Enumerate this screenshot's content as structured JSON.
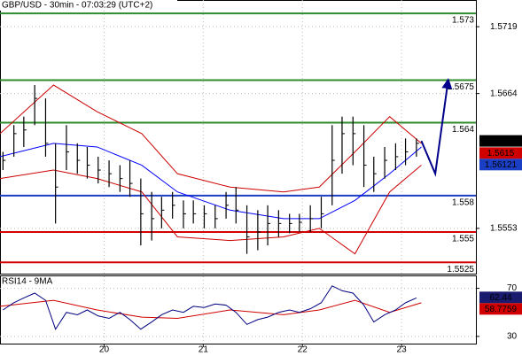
{
  "chart_data": [
    {
      "type": "ohlc",
      "title": "GBP/USD - 30min - 07:03:29 (UTC+2)",
      "x": [
        18.98,
        19.09,
        19.19,
        19.3,
        19.41,
        19.51,
        19.62,
        19.73,
        19.83,
        19.94,
        20.05,
        20.16,
        20.26,
        20.37,
        20.48,
        20.58,
        20.69,
        20.8,
        20.9,
        21.01,
        21.12,
        21.23,
        21.33,
        21.44,
        21.55,
        21.65,
        21.76,
        21.87,
        21.97,
        22.08,
        22.19,
        22.3,
        22.4,
        22.51,
        22.62,
        22.72,
        22.83,
        22.94,
        23.04,
        23.15
      ],
      "high": [
        1.5616,
        1.5638,
        1.5645,
        1.5671,
        1.566,
        1.5623,
        1.5638,
        1.5623,
        1.562,
        1.5612,
        1.5609,
        1.5605,
        1.5609,
        1.5594,
        1.5583,
        1.5579,
        1.5583,
        1.5576,
        1.5576,
        1.5572,
        1.5572,
        1.5583,
        1.5587,
        1.5572,
        1.5568,
        1.5572,
        1.5568,
        1.5565,
        1.5565,
        1.5572,
        1.5579,
        1.5638,
        1.5645,
        1.5645,
        1.5638,
        1.5612,
        1.562,
        1.5623,
        1.5627,
        1.5627
      ],
      "low": [
        1.5601,
        1.5612,
        1.562,
        1.5638,
        1.5612,
        1.5557,
        1.5601,
        1.5598,
        1.5594,
        1.559,
        1.5587,
        1.5583,
        1.5579,
        1.5539,
        1.5543,
        1.5553,
        1.5561,
        1.5553,
        1.5557,
        1.5553,
        1.5553,
        1.5561,
        1.5557,
        1.5532,
        1.5535,
        1.5539,
        1.5546,
        1.5549,
        1.555,
        1.555,
        1.5553,
        1.5572,
        1.5598,
        1.5605,
        1.5587,
        1.5583,
        1.5594,
        1.5601,
        1.5605,
        1.5612
      ],
      "close": [
        1.5609,
        1.5631,
        1.5634,
        1.566,
        1.5623,
        1.5587,
        1.5616,
        1.5609,
        1.5605,
        1.5601,
        1.5598,
        1.5594,
        1.559,
        1.5565,
        1.5561,
        1.5568,
        1.5572,
        1.5565,
        1.5565,
        1.5565,
        1.5561,
        1.5572,
        1.5568,
        1.5546,
        1.555,
        1.5557,
        1.5557,
        1.5557,
        1.5558,
        1.5561,
        1.5565,
        1.5609,
        1.5631,
        1.5631,
        1.5605,
        1.5598,
        1.5609,
        1.5612,
        1.5616,
        1.5623
      ],
      "bar_color": "#000000",
      "overlays": [
        {
          "x": [
            18.95,
            19.49,
            19.93,
            20.38,
            20.74,
            21.27,
            21.81,
            22.17,
            22.53,
            22.88,
            23.2
          ],
          "values": [
            1.5612,
            1.5623,
            1.562,
            1.5605,
            1.5583,
            1.5568,
            1.5561,
            1.5561,
            1.5576,
            1.5598,
            1.562
          ],
          "color": "#0000ff"
        },
        {
          "x": [
            18.95,
            19.49,
            19.93,
            20.38,
            20.74,
            21.27,
            21.81,
            22.17,
            22.53,
            22.88,
            23.2
          ],
          "values": [
            1.5631,
            1.5671,
            1.5649,
            1.5631,
            1.5598,
            1.5587,
            1.5583,
            1.5587,
            1.5616,
            1.5645,
            1.5623
          ],
          "color": "#cc0000"
        },
        {
          "x": [
            18.95,
            19.49,
            19.93,
            20.38,
            20.74,
            21.27,
            21.81,
            22.17,
            22.53,
            22.88,
            23.2
          ],
          "values": [
            1.5594,
            1.5601,
            1.5594,
            1.5583,
            1.5546,
            1.5543,
            1.5546,
            1.5553,
            1.5532,
            1.5583,
            1.5605
          ],
          "color": "#cc0000"
        }
      ],
      "projection": {
        "x": [
          23.2,
          23.34,
          23.47
        ],
        "values": [
          1.5625,
          1.5598,
          1.5675
        ],
        "color": "#00008b"
      },
      "levels": [
        {
          "value": 1.573,
          "color": "#2e8b2e"
        },
        {
          "value": 1.5675,
          "color": "#2e8b2e"
        },
        {
          "value": 1.564,
          "color": "#2e8b2e"
        },
        {
          "value": 1.558,
          "color": "#1a3fc4"
        },
        {
          "value": 1.555,
          "color": "#d00000"
        },
        {
          "value": 1.5525,
          "color": "#d00000"
        }
      ],
      "markers": [
        {
          "value": 1.5625,
          "color": "#000000"
        },
        {
          "value": 1.5615,
          "color": "#d00000"
        },
        {
          "value": 1.56121,
          "color": "#1a3fc4"
        }
      ],
      "xlim": [
        18.95,
        23.75
      ],
      "ylim": [
        1.5515,
        1.5741
      ],
      "yticks": [
        1.5719,
        1.5664,
        1.5553
      ],
      "grid": true
    },
    {
      "type": "line",
      "title": "RSI14 - 9MA",
      "x": [
        18.98,
        19.09,
        19.19,
        19.3,
        19.41,
        19.51,
        19.62,
        19.73,
        19.83,
        19.94,
        20.05,
        20.16,
        20.26,
        20.37,
        20.48,
        20.58,
        20.69,
        20.8,
        20.9,
        21.01,
        21.12,
        21.23,
        21.33,
        21.44,
        21.55,
        21.65,
        21.76,
        21.87,
        21.97,
        22.08,
        22.19,
        22.3,
        22.4,
        22.51,
        22.62,
        22.72,
        22.83,
        22.94,
        23.04,
        23.15
      ],
      "series": [
        {
          "color": "#000080",
          "values": [
            52,
            58,
            62,
            66,
            60,
            36,
            50,
            48,
            52,
            47,
            45,
            50,
            44,
            36,
            42,
            48,
            52,
            50,
            55,
            54,
            57,
            56,
            50,
            40,
            44,
            46,
            50,
            52,
            50,
            53,
            58,
            72,
            68,
            66,
            56,
            42,
            48,
            52,
            58,
            62
          ]
        }
      ],
      "ma": {
        "x": [
          18.95,
          19.49,
          19.93,
          20.38,
          20.74,
          21.27,
          21.81,
          22.17,
          22.53,
          22.88,
          23.2
        ],
        "values": [
          55,
          60,
          52,
          46,
          45,
          52,
          48,
          52,
          60,
          50,
          58
        ],
        "color": "#d00000"
      },
      "markers": [
        {
          "value": 62.44,
          "color": "#1a1a6e"
        },
        {
          "value": 58.7759,
          "color": "#d00000"
        }
      ],
      "xlim": [
        18.95,
        23.75
      ],
      "ylim": [
        24,
        80
      ],
      "yticks": [
        70,
        30
      ],
      "xticks": [
        20,
        21,
        22,
        23
      ],
      "grid": true
    }
  ]
}
